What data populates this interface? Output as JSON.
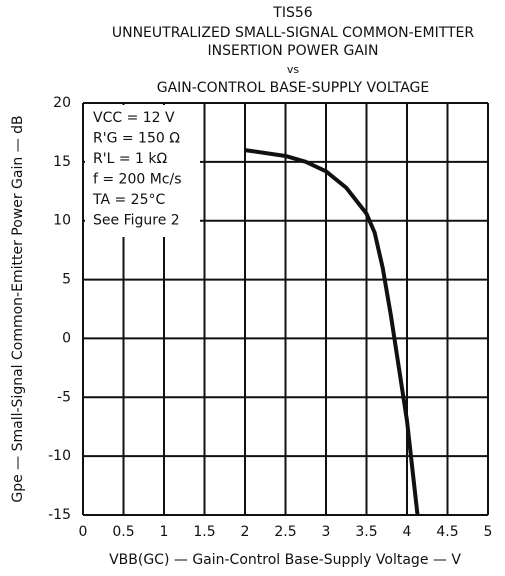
{
  "chart_data": {
    "type": "line",
    "title": [
      "TIS56",
      "UNNEUTRALIZED SMALL-SIGNAL COMMON-EMITTER",
      "INSERTION POWER GAIN",
      "vs",
      "GAIN-CONTROL BASE-SUPPLY VOLTAGE"
    ],
    "x_label": "VBB(GC) — Gain-Control Base-Supply Voltage — V",
    "y_label": "Gpe — Small-Signal Common-Emitter Power Gain — dB",
    "annotations": [
      "VCC  =  12 V",
      "R'G  =  150 Ω",
      "R'L  =  1 kΩ",
      "f  =  200 Mc/s",
      "TA  =  25°C",
      "See Figure 2"
    ],
    "x": [
      2.0,
      2.5,
      2.75,
      3.0,
      3.25,
      3.5,
      3.6,
      3.7,
      3.8,
      3.9,
      4.0,
      4.13
    ],
    "series": [
      {
        "color": "#111111",
        "values": [
          16,
          15.5,
          15,
          14.2,
          12.8,
          10.6,
          9,
          6,
          2,
          -2.5,
          -7,
          -15
        ]
      }
    ],
    "xlim": [
      0,
      5
    ],
    "xticks": [
      0,
      0.5,
      1,
      1.5,
      2,
      2.5,
      3,
      3.5,
      4,
      4.5,
      5
    ],
    "ylim": [
      -15,
      20
    ],
    "yticks": [
      20,
      15,
      10,
      5,
      0,
      -5,
      -10,
      -15
    ],
    "grid": true
  }
}
